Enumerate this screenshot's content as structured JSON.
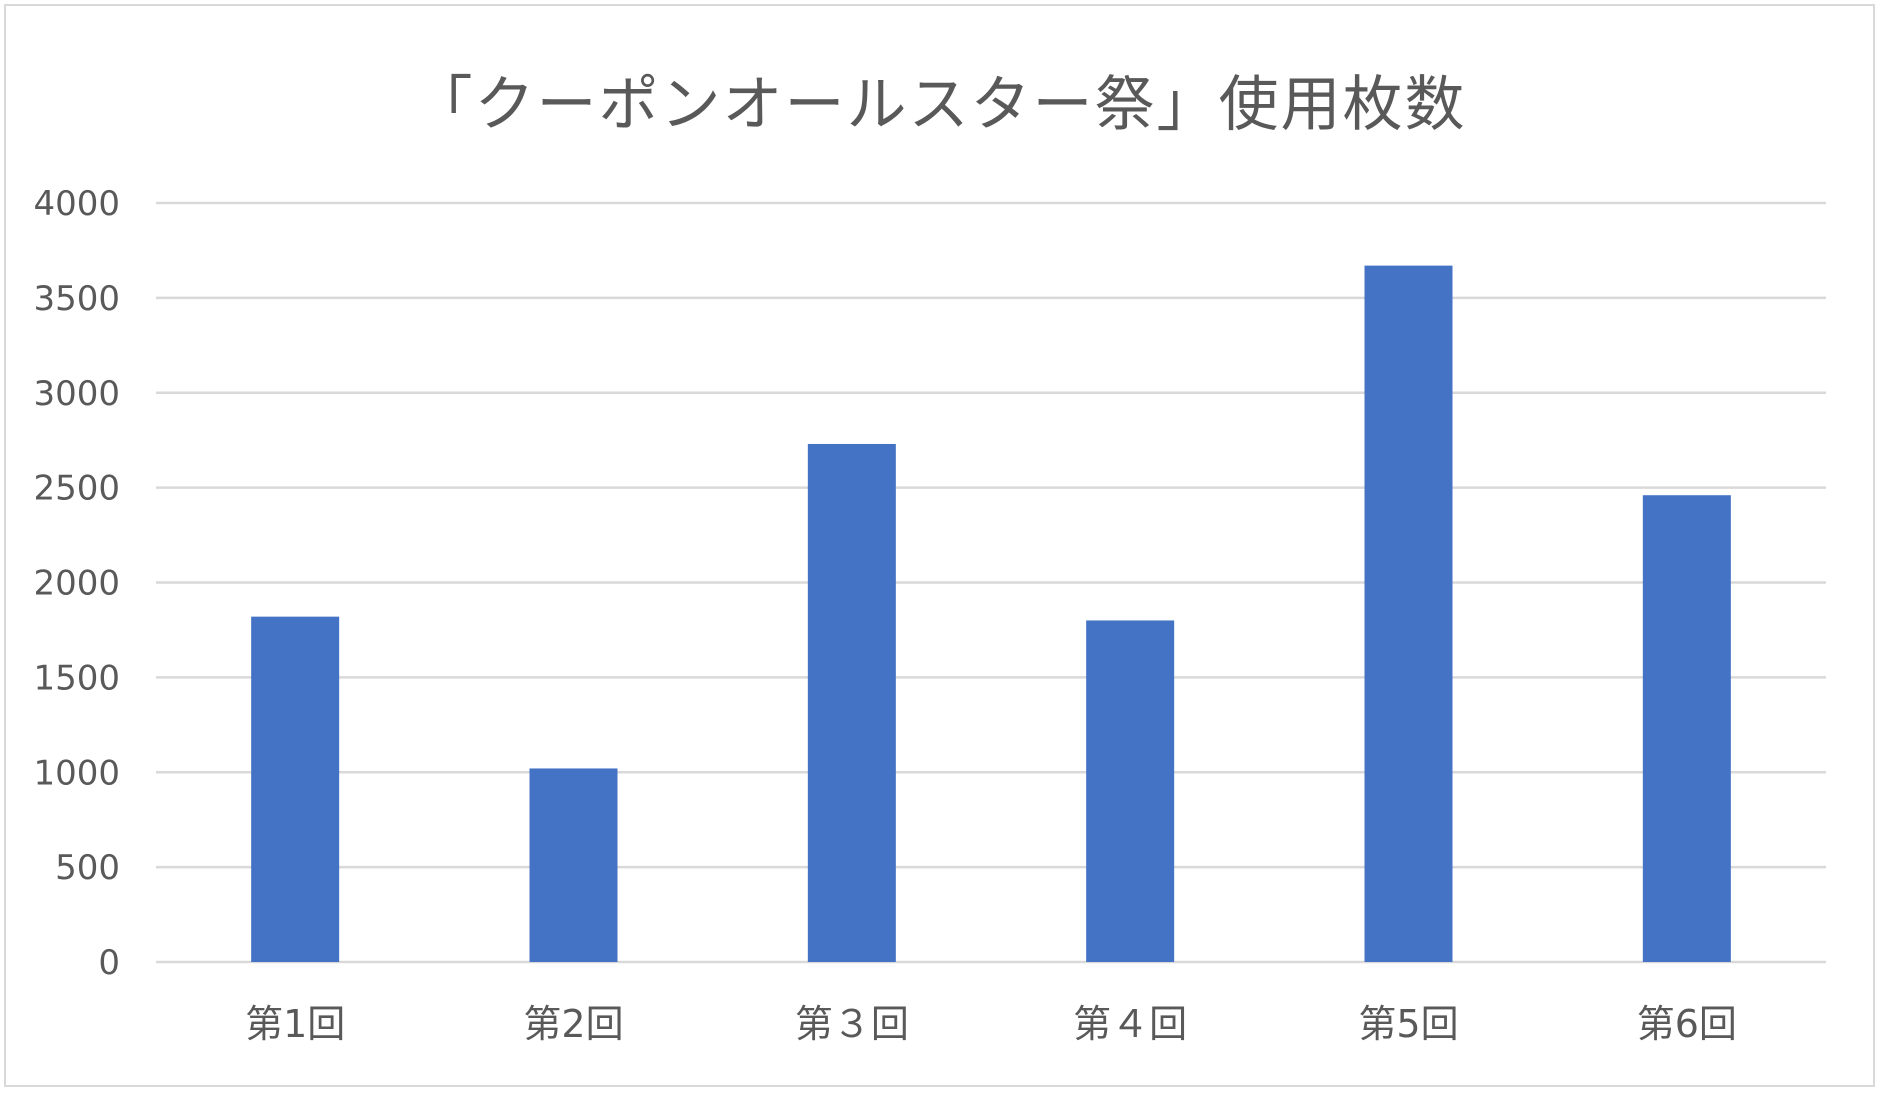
{
  "chart_data": {
    "type": "bar",
    "title": "「クーポンオールスター祭」使用枚数",
    "xlabel": "",
    "ylabel": "",
    "categories": [
      "第1回",
      "第2回",
      "第３回",
      "第４回",
      "第5回",
      "第6回"
    ],
    "series": [
      {
        "values": [
          1820,
          1020,
          2730,
          1800,
          3670,
          2460
        ]
      }
    ],
    "ylim": [
      0,
      4000
    ],
    "yticks": [
      0,
      500,
      1000,
      1500,
      2000,
      2500,
      3000,
      3500,
      4000
    ],
    "grid": true,
    "legend": "none",
    "colors": {
      "bar": "#4472c4",
      "grid": "#d9d9d9",
      "text": "#595959"
    }
  }
}
